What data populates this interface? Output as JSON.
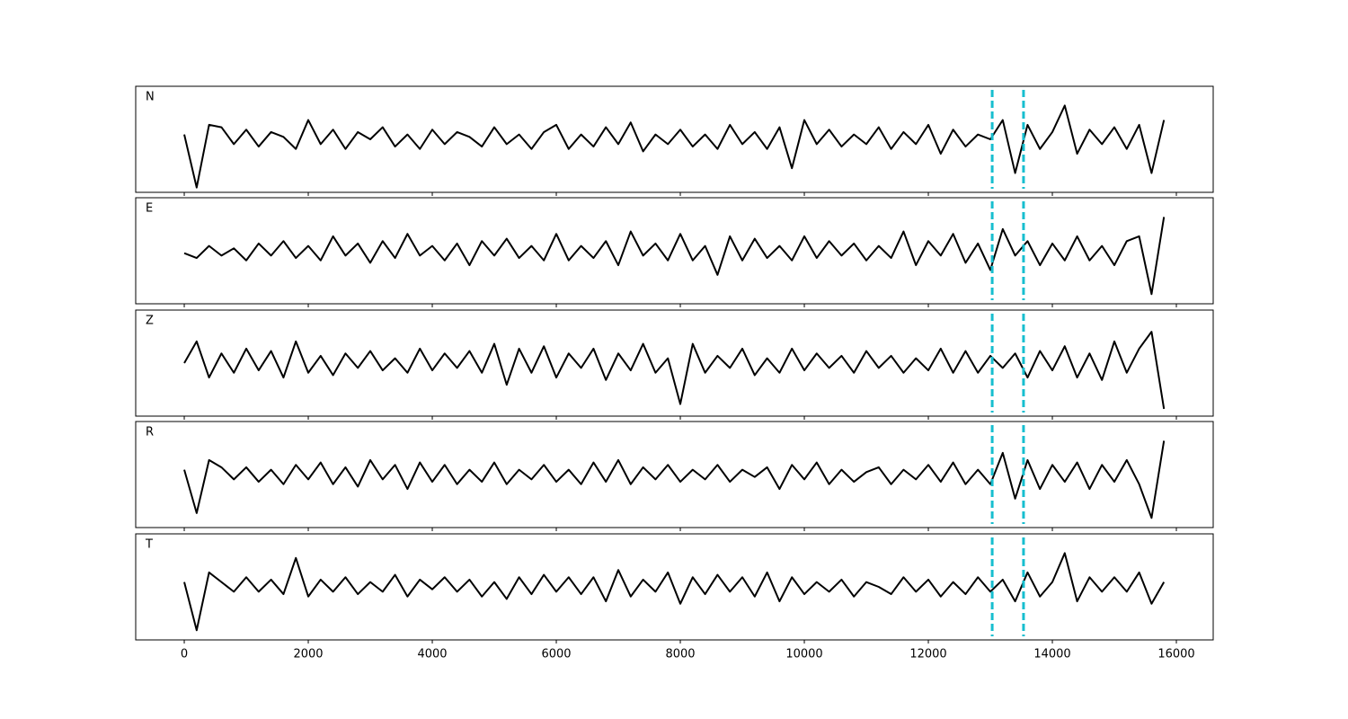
{
  "chart_data": [
    {
      "type": "line",
      "title": "N",
      "color": "#000000",
      "vlines": [
        13030,
        13535
      ],
      "vline_color": "#17becf",
      "xlim": [
        -783,
        16594
      ],
      "ylim": [
        -1.1,
        1.1
      ],
      "xticks": [
        0,
        2000,
        4000,
        6000,
        8000,
        10000,
        12000,
        14000,
        16000
      ],
      "x": [
        0,
        200,
        400,
        600,
        800,
        1000,
        1200,
        1400,
        1600,
        1800,
        2000,
        2200,
        2400,
        2600,
        2800,
        3000,
        3200,
        3400,
        3600,
        3800,
        4000,
        4200,
        4400,
        4600,
        4800,
        5000,
        5200,
        5400,
        5600,
        5800,
        6000,
        6200,
        6400,
        6600,
        6800,
        7000,
        7200,
        7400,
        7600,
        7800,
        8000,
        8200,
        8400,
        8600,
        8800,
        9000,
        9200,
        9400,
        9600,
        9800,
        10000,
        10200,
        10400,
        10600,
        10800,
        11000,
        11200,
        11400,
        11600,
        11800,
        12000,
        12200,
        12400,
        12600,
        12800,
        13000,
        13200,
        13400,
        13600,
        13800,
        14000,
        14200,
        14400,
        14600,
        14800,
        15000,
        15200,
        15400,
        15600,
        15800
      ],
      "values": [
        0.1,
        -1.0,
        0.3,
        0.25,
        -0.1,
        0.2,
        -0.15,
        0.15,
        0.05,
        -0.2,
        0.4,
        -0.1,
        0.2,
        -0.2,
        0.15,
        0.0,
        0.25,
        -0.15,
        0.1,
        -0.2,
        0.2,
        -0.1,
        0.15,
        0.05,
        -0.15,
        0.25,
        -0.1,
        0.1,
        -0.2,
        0.15,
        0.3,
        -0.2,
        0.1,
        -0.15,
        0.25,
        -0.1,
        0.35,
        -0.25,
        0.1,
        -0.1,
        0.2,
        -0.15,
        0.1,
        -0.2,
        0.3,
        -0.1,
        0.15,
        -0.2,
        0.25,
        -0.6,
        0.4,
        -0.1,
        0.2,
        -0.15,
        0.1,
        -0.1,
        0.25,
        -0.2,
        0.15,
        -0.1,
        0.3,
        -0.3,
        0.2,
        -0.15,
        0.1,
        0.0,
        0.4,
        -0.7,
        0.3,
        -0.2,
        0.15,
        0.7,
        -0.3,
        0.2,
        -0.1,
        0.25,
        -0.2,
        0.3,
        -0.7,
        0.4
      ]
    },
    {
      "type": "line",
      "title": "E",
      "color": "#000000",
      "vlines": [
        13030,
        13535
      ],
      "vline_color": "#17becf",
      "xlim": [
        -783,
        16594
      ],
      "ylim": [
        -1.1,
        1.1
      ],
      "xticks": [
        0,
        2000,
        4000,
        6000,
        8000,
        10000,
        12000,
        14000,
        16000
      ],
      "x": [
        0,
        200,
        400,
        600,
        800,
        1000,
        1200,
        1400,
        1600,
        1800,
        2000,
        2200,
        2400,
        2600,
        2800,
        3000,
        3200,
        3400,
        3600,
        3800,
        4000,
        4200,
        4400,
        4600,
        4800,
        5000,
        5200,
        5400,
        5600,
        5800,
        6000,
        6200,
        6400,
        6600,
        6800,
        7000,
        7200,
        7400,
        7600,
        7800,
        8000,
        8200,
        8400,
        8600,
        8800,
        9000,
        9200,
        9400,
        9600,
        9800,
        10000,
        10200,
        10400,
        10600,
        10800,
        11000,
        11200,
        11400,
        11600,
        11800,
        12000,
        12200,
        12400,
        12600,
        12800,
        13000,
        13200,
        13400,
        13600,
        13800,
        14000,
        14200,
        14400,
        14600,
        14800,
        15000,
        15200,
        15400,
        15600,
        15800
      ],
      "values": [
        -0.05,
        -0.15,
        0.1,
        -0.1,
        0.05,
        -0.2,
        0.15,
        -0.1,
        0.2,
        -0.15,
        0.1,
        -0.2,
        0.3,
        -0.1,
        0.15,
        -0.25,
        0.2,
        -0.15,
        0.35,
        -0.1,
        0.1,
        -0.2,
        0.15,
        -0.3,
        0.2,
        -0.1,
        0.25,
        -0.15,
        0.1,
        -0.2,
        0.35,
        -0.2,
        0.1,
        -0.15,
        0.2,
        -0.3,
        0.4,
        -0.1,
        0.15,
        -0.2,
        0.35,
        -0.2,
        0.1,
        -0.5,
        0.3,
        -0.2,
        0.25,
        -0.15,
        0.1,
        -0.2,
        0.3,
        -0.15,
        0.2,
        -0.1,
        0.15,
        -0.2,
        0.1,
        -0.15,
        0.4,
        -0.3,
        0.2,
        -0.1,
        0.35,
        -0.25,
        0.15,
        -0.4,
        0.45,
        -0.1,
        0.2,
        -0.3,
        0.15,
        -0.2,
        0.3,
        -0.2,
        0.1,
        -0.3,
        0.2,
        0.3,
        -0.9,
        0.7
      ]
    },
    {
      "type": "line",
      "title": "Z",
      "color": "#000000",
      "vlines": [
        13030,
        13535
      ],
      "vline_color": "#17becf",
      "xlim": [
        -783,
        16594
      ],
      "ylim": [
        -1.1,
        1.1
      ],
      "xticks": [
        0,
        2000,
        4000,
        6000,
        8000,
        10000,
        12000,
        14000,
        16000
      ],
      "x": [
        0,
        200,
        400,
        600,
        800,
        1000,
        1200,
        1400,
        1600,
        1800,
        2000,
        2200,
        2400,
        2600,
        2800,
        3000,
        3200,
        3400,
        3600,
        3800,
        4000,
        4200,
        4400,
        4600,
        4800,
        5000,
        5200,
        5400,
        5600,
        5800,
        6000,
        6200,
        6400,
        6600,
        6800,
        7000,
        7200,
        7400,
        7600,
        7800,
        8000,
        8200,
        8400,
        8600,
        8800,
        9000,
        9200,
        9400,
        9600,
        9800,
        10000,
        10200,
        10400,
        10600,
        10800,
        11000,
        11200,
        11400,
        11600,
        11800,
        12000,
        12200,
        12400,
        12600,
        12800,
        13000,
        13200,
        13400,
        13600,
        13800,
        14000,
        14200,
        14400,
        14600,
        14800,
        15000,
        15200,
        15400,
        15600,
        15800
      ],
      "values": [
        0.0,
        0.45,
        -0.3,
        0.2,
        -0.2,
        0.3,
        -0.15,
        0.25,
        -0.3,
        0.45,
        -0.2,
        0.15,
        -0.25,
        0.2,
        -0.1,
        0.25,
        -0.15,
        0.1,
        -0.2,
        0.3,
        -0.15,
        0.2,
        -0.1,
        0.25,
        -0.2,
        0.4,
        -0.45,
        0.3,
        -0.2,
        0.35,
        -0.3,
        0.2,
        -0.1,
        0.3,
        -0.35,
        0.2,
        -0.15,
        0.4,
        -0.2,
        0.1,
        -0.85,
        0.4,
        -0.2,
        0.15,
        -0.1,
        0.3,
        -0.25,
        0.1,
        -0.2,
        0.3,
        -0.15,
        0.2,
        -0.1,
        0.15,
        -0.2,
        0.25,
        -0.1,
        0.15,
        -0.2,
        0.1,
        -0.15,
        0.3,
        -0.2,
        0.25,
        -0.2,
        0.15,
        -0.1,
        0.2,
        -0.3,
        0.25,
        -0.15,
        0.35,
        -0.3,
        0.2,
        -0.35,
        0.45,
        -0.2,
        0.3,
        0.65,
        -0.95
      ]
    },
    {
      "type": "line",
      "title": "R",
      "color": "#000000",
      "vlines": [
        13030,
        13535
      ],
      "vline_color": "#17becf",
      "xlim": [
        -783,
        16594
      ],
      "ylim": [
        -1.1,
        1.1
      ],
      "xticks": [
        0,
        2000,
        4000,
        6000,
        8000,
        10000,
        12000,
        14000,
        16000
      ],
      "x": [
        0,
        200,
        400,
        600,
        800,
        1000,
        1200,
        1400,
        1600,
        1800,
        2000,
        2200,
        2400,
        2600,
        2800,
        3000,
        3200,
        3400,
        3600,
        3800,
        4000,
        4200,
        4400,
        4600,
        4800,
        5000,
        5200,
        5400,
        5600,
        5800,
        6000,
        6200,
        6400,
        6600,
        6800,
        7000,
        7200,
        7400,
        7600,
        7800,
        8000,
        8200,
        8400,
        8600,
        8800,
        9000,
        9200,
        9400,
        9600,
        9800,
        10000,
        10200,
        10400,
        10600,
        10800,
        11000,
        11200,
        11400,
        11600,
        11800,
        12000,
        12200,
        12400,
        12600,
        12800,
        13000,
        13200,
        13400,
        13600,
        13800,
        14000,
        14200,
        14400,
        14600,
        14800,
        15000,
        15200,
        15400,
        15600,
        15800
      ],
      "values": [
        0.1,
        -0.8,
        0.3,
        0.15,
        -0.1,
        0.15,
        -0.15,
        0.1,
        -0.2,
        0.2,
        -0.1,
        0.25,
        -0.2,
        0.15,
        -0.25,
        0.3,
        -0.1,
        0.2,
        -0.3,
        0.25,
        -0.15,
        0.2,
        -0.2,
        0.1,
        -0.15,
        0.25,
        -0.2,
        0.1,
        -0.1,
        0.2,
        -0.15,
        0.1,
        -0.2,
        0.25,
        -0.15,
        0.3,
        -0.2,
        0.15,
        -0.1,
        0.2,
        -0.15,
        0.1,
        -0.1,
        0.2,
        -0.15,
        0.1,
        -0.05,
        0.15,
        -0.3,
        0.2,
        -0.1,
        0.25,
        -0.2,
        0.1,
        -0.15,
        0.05,
        0.15,
        -0.2,
        0.1,
        -0.1,
        0.2,
        -0.15,
        0.25,
        -0.2,
        0.1,
        -0.2,
        0.45,
        -0.5,
        0.3,
        -0.3,
        0.2,
        -0.15,
        0.25,
        -0.3,
        0.2,
        -0.15,
        0.3,
        -0.2,
        -0.9,
        0.7
      ]
    },
    {
      "type": "line",
      "title": "T",
      "color": "#000000",
      "vlines": [
        13030,
        13535
      ],
      "vline_color": "#17becf",
      "xlim": [
        -783,
        16594
      ],
      "ylim": [
        -1.1,
        1.1
      ],
      "xticks": [
        0,
        2000,
        4000,
        6000,
        8000,
        10000,
        12000,
        14000,
        16000
      ],
      "x": [
        0,
        200,
        400,
        600,
        800,
        1000,
        1200,
        1400,
        1600,
        1800,
        2000,
        2200,
        2400,
        2600,
        2800,
        3000,
        3200,
        3400,
        3600,
        3800,
        4000,
        4200,
        4400,
        4600,
        4800,
        5000,
        5200,
        5400,
        5600,
        5800,
        6000,
        6200,
        6400,
        6600,
        6800,
        7000,
        7200,
        7400,
        7600,
        7800,
        8000,
        8200,
        8400,
        8600,
        8800,
        9000,
        9200,
        9400,
        9600,
        9800,
        10000,
        10200,
        10400,
        10600,
        10800,
        11000,
        11200,
        11400,
        11600,
        11800,
        12000,
        12200,
        12400,
        12600,
        12800,
        13000,
        13200,
        13400,
        13600,
        13800,
        14000,
        14200,
        14400,
        14600,
        14800,
        15000,
        15200,
        15400,
        15600,
        15800
      ],
      "values": [
        0.1,
        -0.9,
        0.3,
        0.1,
        -0.1,
        0.2,
        -0.1,
        0.15,
        -0.15,
        0.6,
        -0.2,
        0.15,
        -0.1,
        0.2,
        -0.15,
        0.1,
        -0.1,
        0.25,
        -0.2,
        0.15,
        -0.05,
        0.2,
        -0.1,
        0.15,
        -0.2,
        0.1,
        -0.25,
        0.2,
        -0.15,
        0.25,
        -0.1,
        0.2,
        -0.15,
        0.2,
        -0.3,
        0.35,
        -0.2,
        0.15,
        -0.1,
        0.3,
        -0.35,
        0.2,
        -0.15,
        0.25,
        -0.1,
        0.2,
        -0.2,
        0.3,
        -0.3,
        0.2,
        -0.15,
        0.1,
        -0.1,
        0.15,
        -0.2,
        0.1,
        0.0,
        -0.15,
        0.2,
        -0.1,
        0.15,
        -0.2,
        0.1,
        -0.15,
        0.2,
        -0.1,
        0.15,
        -0.3,
        0.3,
        -0.2,
        0.1,
        0.7,
        -0.3,
        0.2,
        -0.1,
        0.2,
        -0.1,
        0.3,
        -0.35,
        0.1
      ]
    }
  ]
}
